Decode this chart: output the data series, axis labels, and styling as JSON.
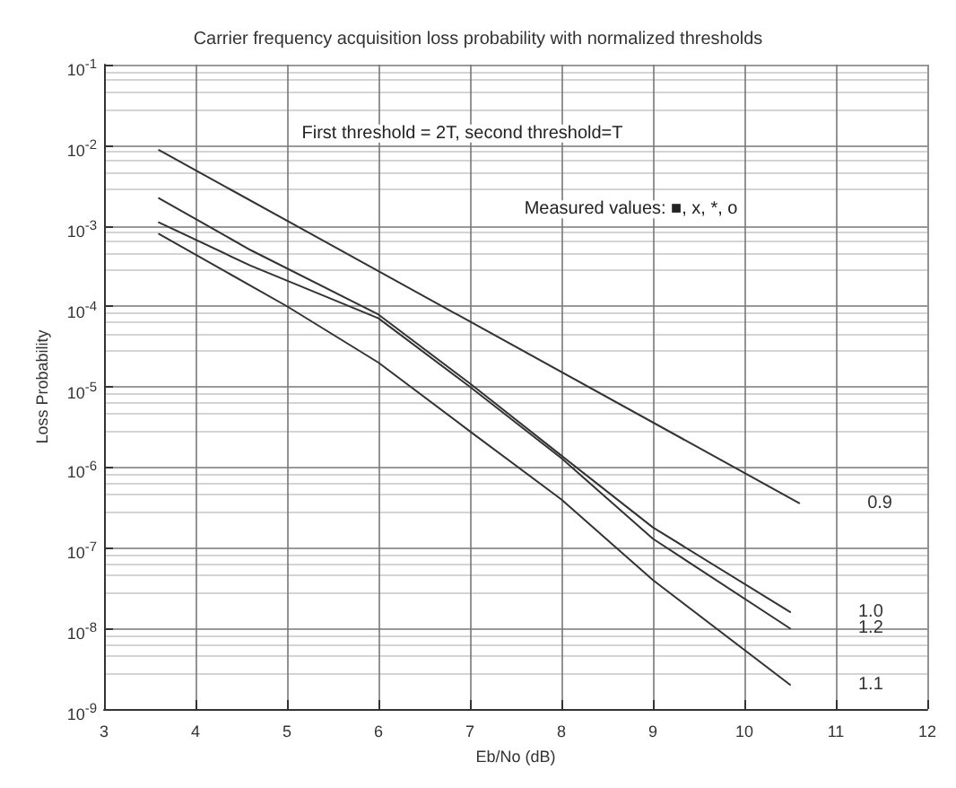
{
  "chart_data": {
    "type": "line",
    "title": "Carrier frequency acquisition loss probability with normalized thresholds",
    "xlabel": "Eb/No (dB)",
    "ylabel": "Loss Probability",
    "annotations": [
      "First threshold = 2T, second threshold=T",
      "Measured values: ■, x, *, o"
    ],
    "series": [
      {
        "name": "0.9",
        "color": "#333333",
        "x": [
          3.6,
          10.6
        ],
        "values": [
          0.0087,
          3.6e-07
        ]
      },
      {
        "name": "1.0",
        "color": "#333333",
        "x": [
          3.6,
          4.6,
          6,
          7,
          8,
          9,
          10.5
        ],
        "values": [
          0.0022,
          0.0005,
          7.9e-05,
          1.1e-05,
          1.4e-06,
          1.8e-07,
          1.6e-08
        ]
      },
      {
        "name": "1.2",
        "color": "#333333",
        "x": [
          3.6,
          4.6,
          6,
          7,
          8,
          9,
          10.5
        ],
        "values": [
          0.0011,
          0.00032,
          7.1e-05,
          1e-05,
          1.3e-06,
          1.3e-07,
          1e-08
        ]
      },
      {
        "name": "1.1",
        "color": "#333333",
        "x": [
          3.6,
          5,
          6,
          7,
          8,
          9,
          10.5
        ],
        "values": [
          0.00079,
          0.0001,
          2e-05,
          2.8e-06,
          4e-07,
          4e-08,
          2e-09
        ]
      }
    ],
    "xlim": [
      3,
      12
    ],
    "xticks": [
      3,
      4,
      5,
      6,
      7,
      8,
      9,
      10,
      11,
      12
    ],
    "ylim": [
      1e-09,
      0.1
    ],
    "yticks": [
      {
        "value": 0.1,
        "label": "10$^{-1}$"
      },
      {
        "value": 0.01,
        "label": "10$^{-2}$"
      },
      {
        "value": 0.001,
        "label": "10$^{-3}$"
      },
      {
        "value": 0.0001,
        "label": "10$^{-4}$"
      },
      {
        "value": 1e-05,
        "label": "10$^{-5}$"
      },
      {
        "value": 1e-06,
        "label": "10$^{-6}$"
      },
      {
        "value": 1e-07,
        "label": "10$^{-7}$"
      },
      {
        "value": 1e-08,
        "label": "10$^{-8}$"
      },
      {
        "value": 1e-09,
        "label": "10$^{-9}$"
      }
    ],
    "log": "y",
    "grid": true,
    "legend": false,
    "marker": "none",
    "line_style": "solid"
  }
}
